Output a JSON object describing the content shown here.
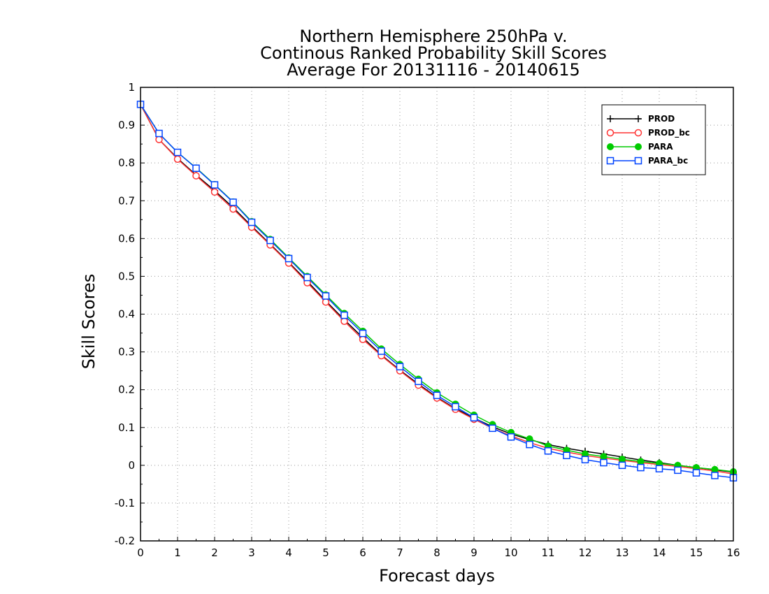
{
  "chart_data": {
    "type": "line",
    "title_lines": [
      "Northern Hemisphere 250hPa v.",
      "Continous Ranked Probability Skill Scores",
      "Average For 20131116 - 20140615"
    ],
    "xlabel": "Forecast days",
    "ylabel": "Skill Scores",
    "xlim": [
      0,
      16
    ],
    "ylim": [
      -0.2,
      1
    ],
    "xticks": [
      "0",
      "1",
      "2",
      "3",
      "4",
      "5",
      "6",
      "7",
      "8",
      "9",
      "10",
      "11",
      "12",
      "13",
      "14",
      "15",
      "16"
    ],
    "yticks": [
      "1",
      "0.9",
      "0.8",
      "0.7",
      "0.6",
      "0.5",
      "0.4",
      "0.3",
      "0.2",
      "0.1",
      "0",
      "-0.1",
      "-0.2"
    ],
    "grid": true,
    "legend_position": "top-right",
    "x": [
      0,
      0.5,
      1,
      1.5,
      2,
      2.5,
      3,
      3.5,
      4,
      4.5,
      5,
      5.5,
      6,
      6.5,
      7,
      7.5,
      8,
      8.5,
      9,
      9.5,
      10,
      10.5,
      11,
      11.5,
      12,
      12.5,
      13,
      13.5,
      14,
      14.5,
      15,
      15.5,
      16
    ],
    "series": [
      {
        "name": "PROD",
        "color": "#000000",
        "marker": "plus",
        "values": [
          0.955,
          0.862,
          0.812,
          0.768,
          0.727,
          0.682,
          0.633,
          0.585,
          0.537,
          0.487,
          0.435,
          0.385,
          0.338,
          0.292,
          0.252,
          0.215,
          0.18,
          0.15,
          0.125,
          0.102,
          0.083,
          0.068,
          0.055,
          0.045,
          0.037,
          0.03,
          0.022,
          0.014,
          0.007,
          0.0,
          -0.006,
          -0.012,
          -0.018
        ]
      },
      {
        "name": "PROD_bc",
        "color": "#ff3333",
        "marker": "circle",
        "values": [
          0.955,
          0.862,
          0.81,
          0.766,
          0.723,
          0.678,
          0.63,
          0.583,
          0.535,
          0.483,
          0.432,
          0.381,
          0.333,
          0.29,
          0.25,
          0.212,
          0.178,
          0.148,
          0.122,
          0.098,
          0.078,
          0.06,
          0.045,
          0.035,
          0.026,
          0.019,
          0.013,
          0.007,
          0.002,
          -0.003,
          -0.009,
          -0.015,
          -0.023
        ]
      },
      {
        "name": "PARA",
        "color": "#00cc00",
        "marker": "filled-circle",
        "values": [
          0.955,
          0.878,
          0.828,
          0.787,
          0.743,
          0.697,
          0.645,
          0.598,
          0.549,
          0.5,
          0.451,
          0.402,
          0.355,
          0.308,
          0.267,
          0.228,
          0.192,
          0.162,
          0.133,
          0.108,
          0.087,
          0.07,
          0.051,
          0.04,
          0.03,
          0.023,
          0.016,
          0.01,
          0.005,
          0.0,
          -0.006,
          -0.011,
          -0.017
        ]
      },
      {
        "name": "PARA_bc",
        "color": "#0044ff",
        "marker": "square",
        "values": [
          0.955,
          0.878,
          0.828,
          0.786,
          0.742,
          0.696,
          0.643,
          0.595,
          0.547,
          0.497,
          0.448,
          0.397,
          0.349,
          0.302,
          0.261,
          0.222,
          0.185,
          0.155,
          0.126,
          0.098,
          0.075,
          0.055,
          0.038,
          0.026,
          0.015,
          0.007,
          0.0,
          -0.006,
          -0.009,
          -0.013,
          -0.02,
          -0.027,
          -0.033
        ]
      }
    ]
  }
}
